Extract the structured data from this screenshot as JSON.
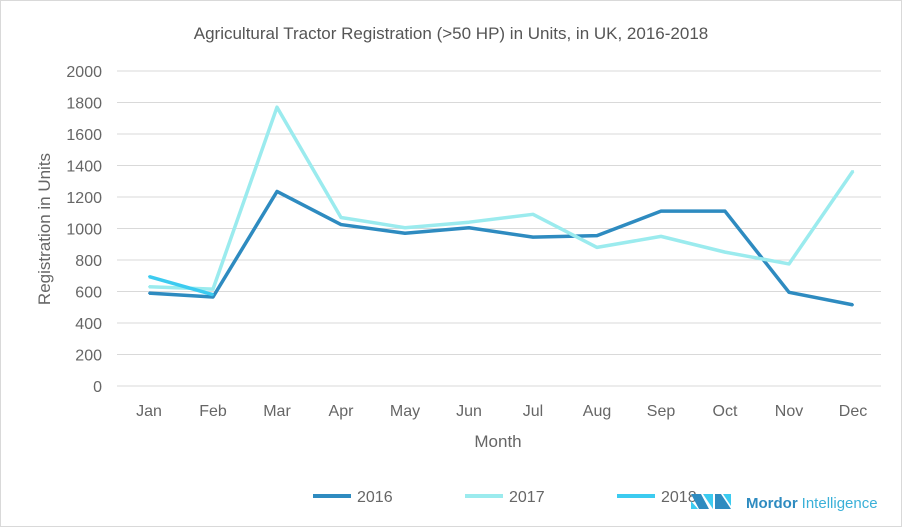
{
  "chart_data": {
    "type": "line",
    "title": "Agricultural Tractor Registration (>50 HP) in Units, in UK, 2016-2018",
    "xlabel": "Month",
    "ylabel": "Registration in Units",
    "categories": [
      "Jan",
      "Feb",
      "Mar",
      "Apr",
      "May",
      "Jun",
      "Jul",
      "Aug",
      "Sep",
      "Oct",
      "Nov",
      "Dec"
    ],
    "ylim": [
      0,
      2000
    ],
    "yticks": [
      0,
      200,
      400,
      600,
      800,
      1000,
      1200,
      1400,
      1600,
      1800,
      2000
    ],
    "grid": true,
    "legend": "bottom",
    "series": [
      {
        "name": "2016",
        "color": "#2e8bc0",
        "values": [
          590,
          565,
          1235,
          1025,
          970,
          1005,
          945,
          955,
          1110,
          1110,
          595,
          515
        ]
      },
      {
        "name": "2017",
        "color": "#9bebee",
        "values": [
          630,
          615,
          1770,
          1070,
          1005,
          1040,
          1090,
          880,
          950,
          850,
          775,
          1365
        ]
      },
      {
        "name": "2018",
        "color": "#3ccbf0",
        "values": [
          695,
          580,
          null,
          null,
          null,
          null,
          null,
          null,
          null,
          null,
          null,
          null
        ]
      }
    ]
  },
  "logo": {
    "text": "Mordor Intelligence",
    "brand": "Mordor",
    "rest": "Intelligence"
  }
}
